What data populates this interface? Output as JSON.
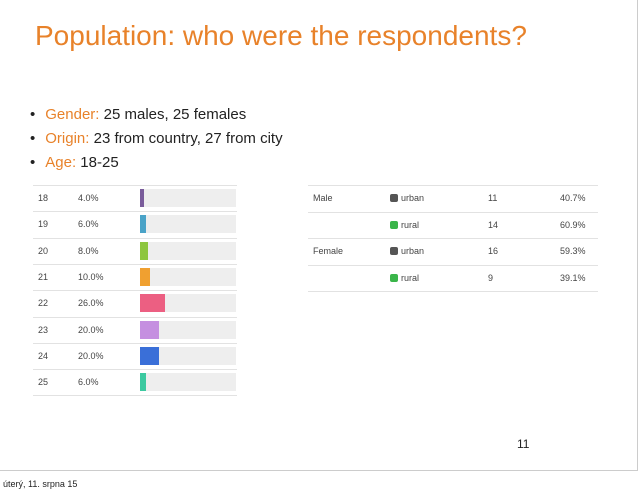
{
  "title": "Population: who were the respondents?",
  "bullets": [
    {
      "key": "Gender:",
      "text": "25 males, 25 females"
    },
    {
      "key": "Origin:",
      "text": "23 from country, 27 from city"
    },
    {
      "key": "Age:",
      "text": "18-25"
    }
  ],
  "age_table": {
    "scale_max": 100,
    "rows": [
      {
        "age": "18",
        "percent": {
          "value": 4,
          "label": "4.0%"
        },
        "color": "#7a5c9b"
      },
      {
        "age": "19",
        "percent": {
          "value": 6,
          "label": "6.0%"
        },
        "color": "#4aa3c8"
      },
      {
        "age": "20",
        "percent": {
          "value": 8,
          "label": "8.0%"
        },
        "color": "#8dc63f"
      },
      {
        "age": "21",
        "percent": {
          "value": 10,
          "label": "10.0%"
        },
        "color": "#f0a030"
      },
      {
        "age": "22",
        "percent": {
          "value": 26,
          "label": "26.0%"
        },
        "color": "#ec5f82"
      },
      {
        "age": "23",
        "percent": {
          "value": 20,
          "label": "20.0%"
        },
        "color": "#c58fe0"
      },
      {
        "age": "24",
        "percent": {
          "value": 20,
          "label": "20.0%"
        },
        "color": "#3a6fd8"
      },
      {
        "age": "25",
        "percent": {
          "value": 6,
          "label": "6.0%"
        },
        "color": "#3cc9a0"
      }
    ]
  },
  "origin_table": {
    "rows": [
      {
        "gender": "Male",
        "area": "urban",
        "color": "#555555",
        "count": "11",
        "percent": "40.7%"
      },
      {
        "gender": null,
        "area": "rural",
        "color": "#3ab54a",
        "count": "14",
        "percent": "60.9%"
      },
      {
        "gender": "Female",
        "area": "urban",
        "color": "#555555",
        "count": "16",
        "percent": "59.3%"
      },
      {
        "gender": null,
        "area": "rural",
        "color": "#3ab54a",
        "count": "9",
        "percent": "39.1%"
      }
    ]
  },
  "page_number": "11",
  "footer": "úterý, 11. srpna 15"
}
